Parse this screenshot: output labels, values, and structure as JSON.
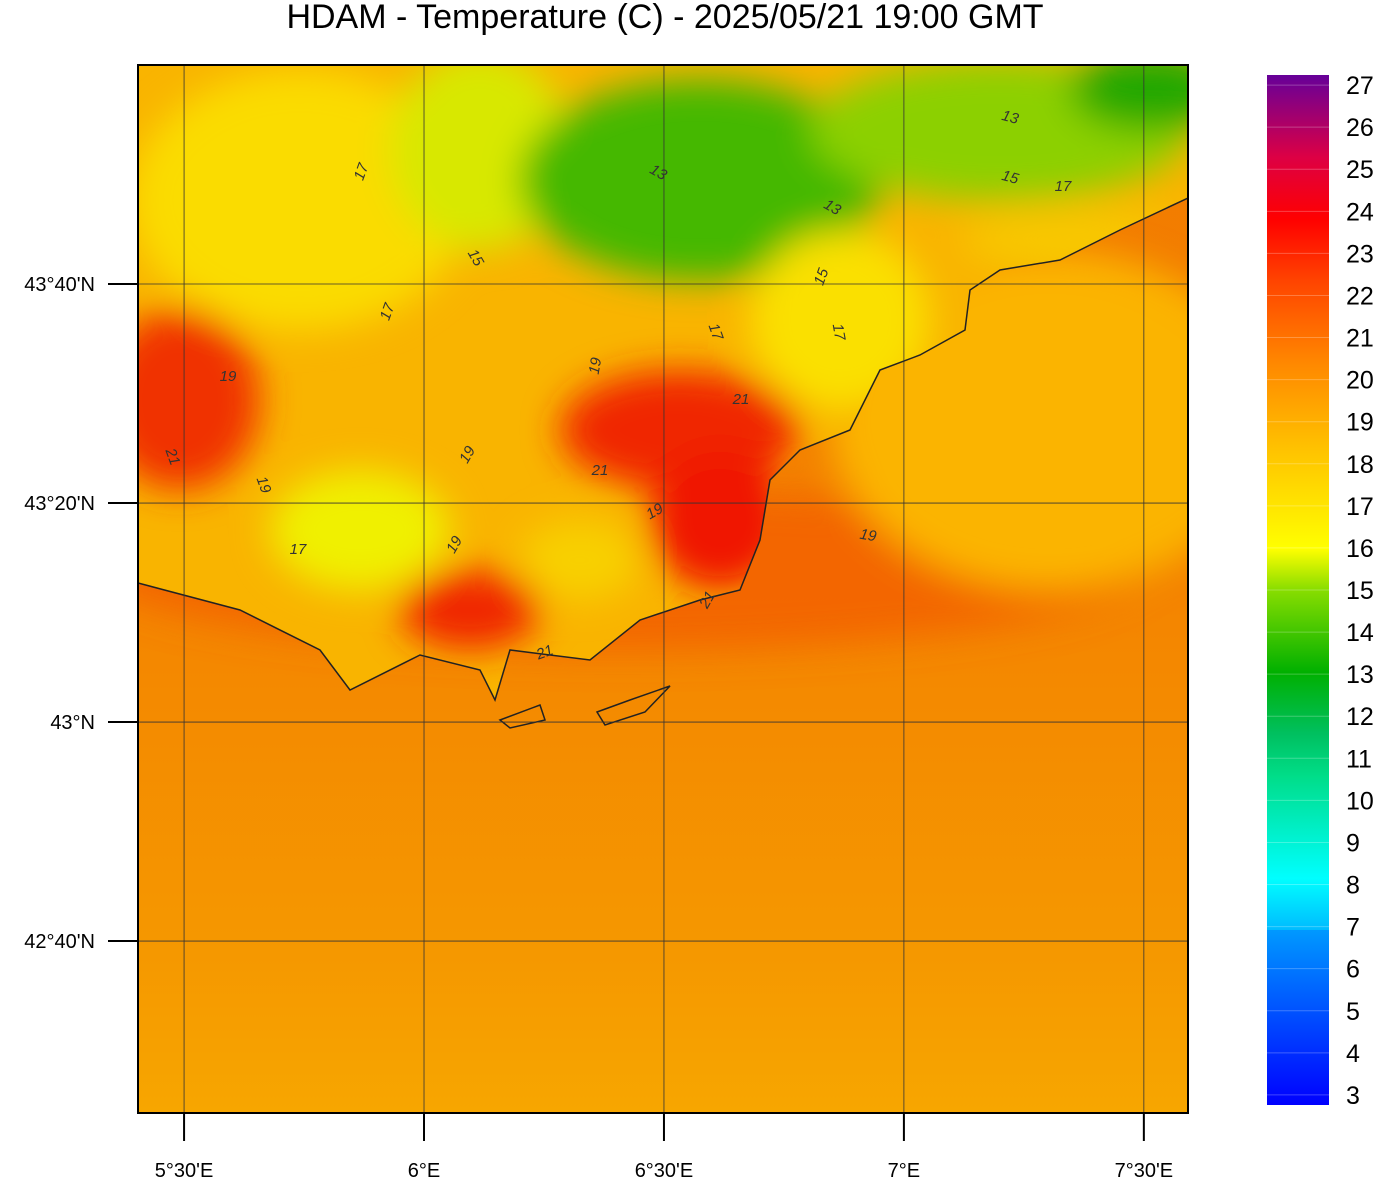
{
  "title": "HDAM - Temperature (C)  -  2025/05/21  19:00 GMT",
  "map": {
    "xlim": [
      5.404,
      7.592
    ],
    "ylim": [
      42.405,
      44.0
    ],
    "xticks": [
      {
        "value": 5.5,
        "label": "5°30'E"
      },
      {
        "value": 6,
        "label": "6°E"
      },
      {
        "value": 6.5,
        "label": "6°30'E"
      },
      {
        "value": 7,
        "label": "7°E"
      },
      {
        "value": 7.5,
        "label": "7°30'E"
      }
    ],
    "yticks": [
      {
        "value": 43.6667,
        "label": "43°40'N"
      },
      {
        "value": 43.3333,
        "label": "43°20'N"
      },
      {
        "value": 43,
        "label": "43°N"
      },
      {
        "value": 42.6667,
        "label": "42°40'N"
      }
    ],
    "grid": true,
    "contour_labels": [
      17,
      15,
      17,
      13,
      13,
      15,
      17,
      13,
      15,
      17,
      17,
      19,
      19,
      21,
      21,
      19,
      19,
      17,
      19,
      19,
      21,
      21,
      21,
      19
    ]
  },
  "colorbar": {
    "lim": [
      2.76,
      27.24
    ],
    "ticks": [
      3,
      4,
      5,
      6,
      7,
      8,
      9,
      10,
      11,
      12,
      13,
      14,
      15,
      16,
      17,
      18,
      19,
      20,
      21,
      22,
      23,
      24,
      25,
      26,
      27
    ]
  }
}
